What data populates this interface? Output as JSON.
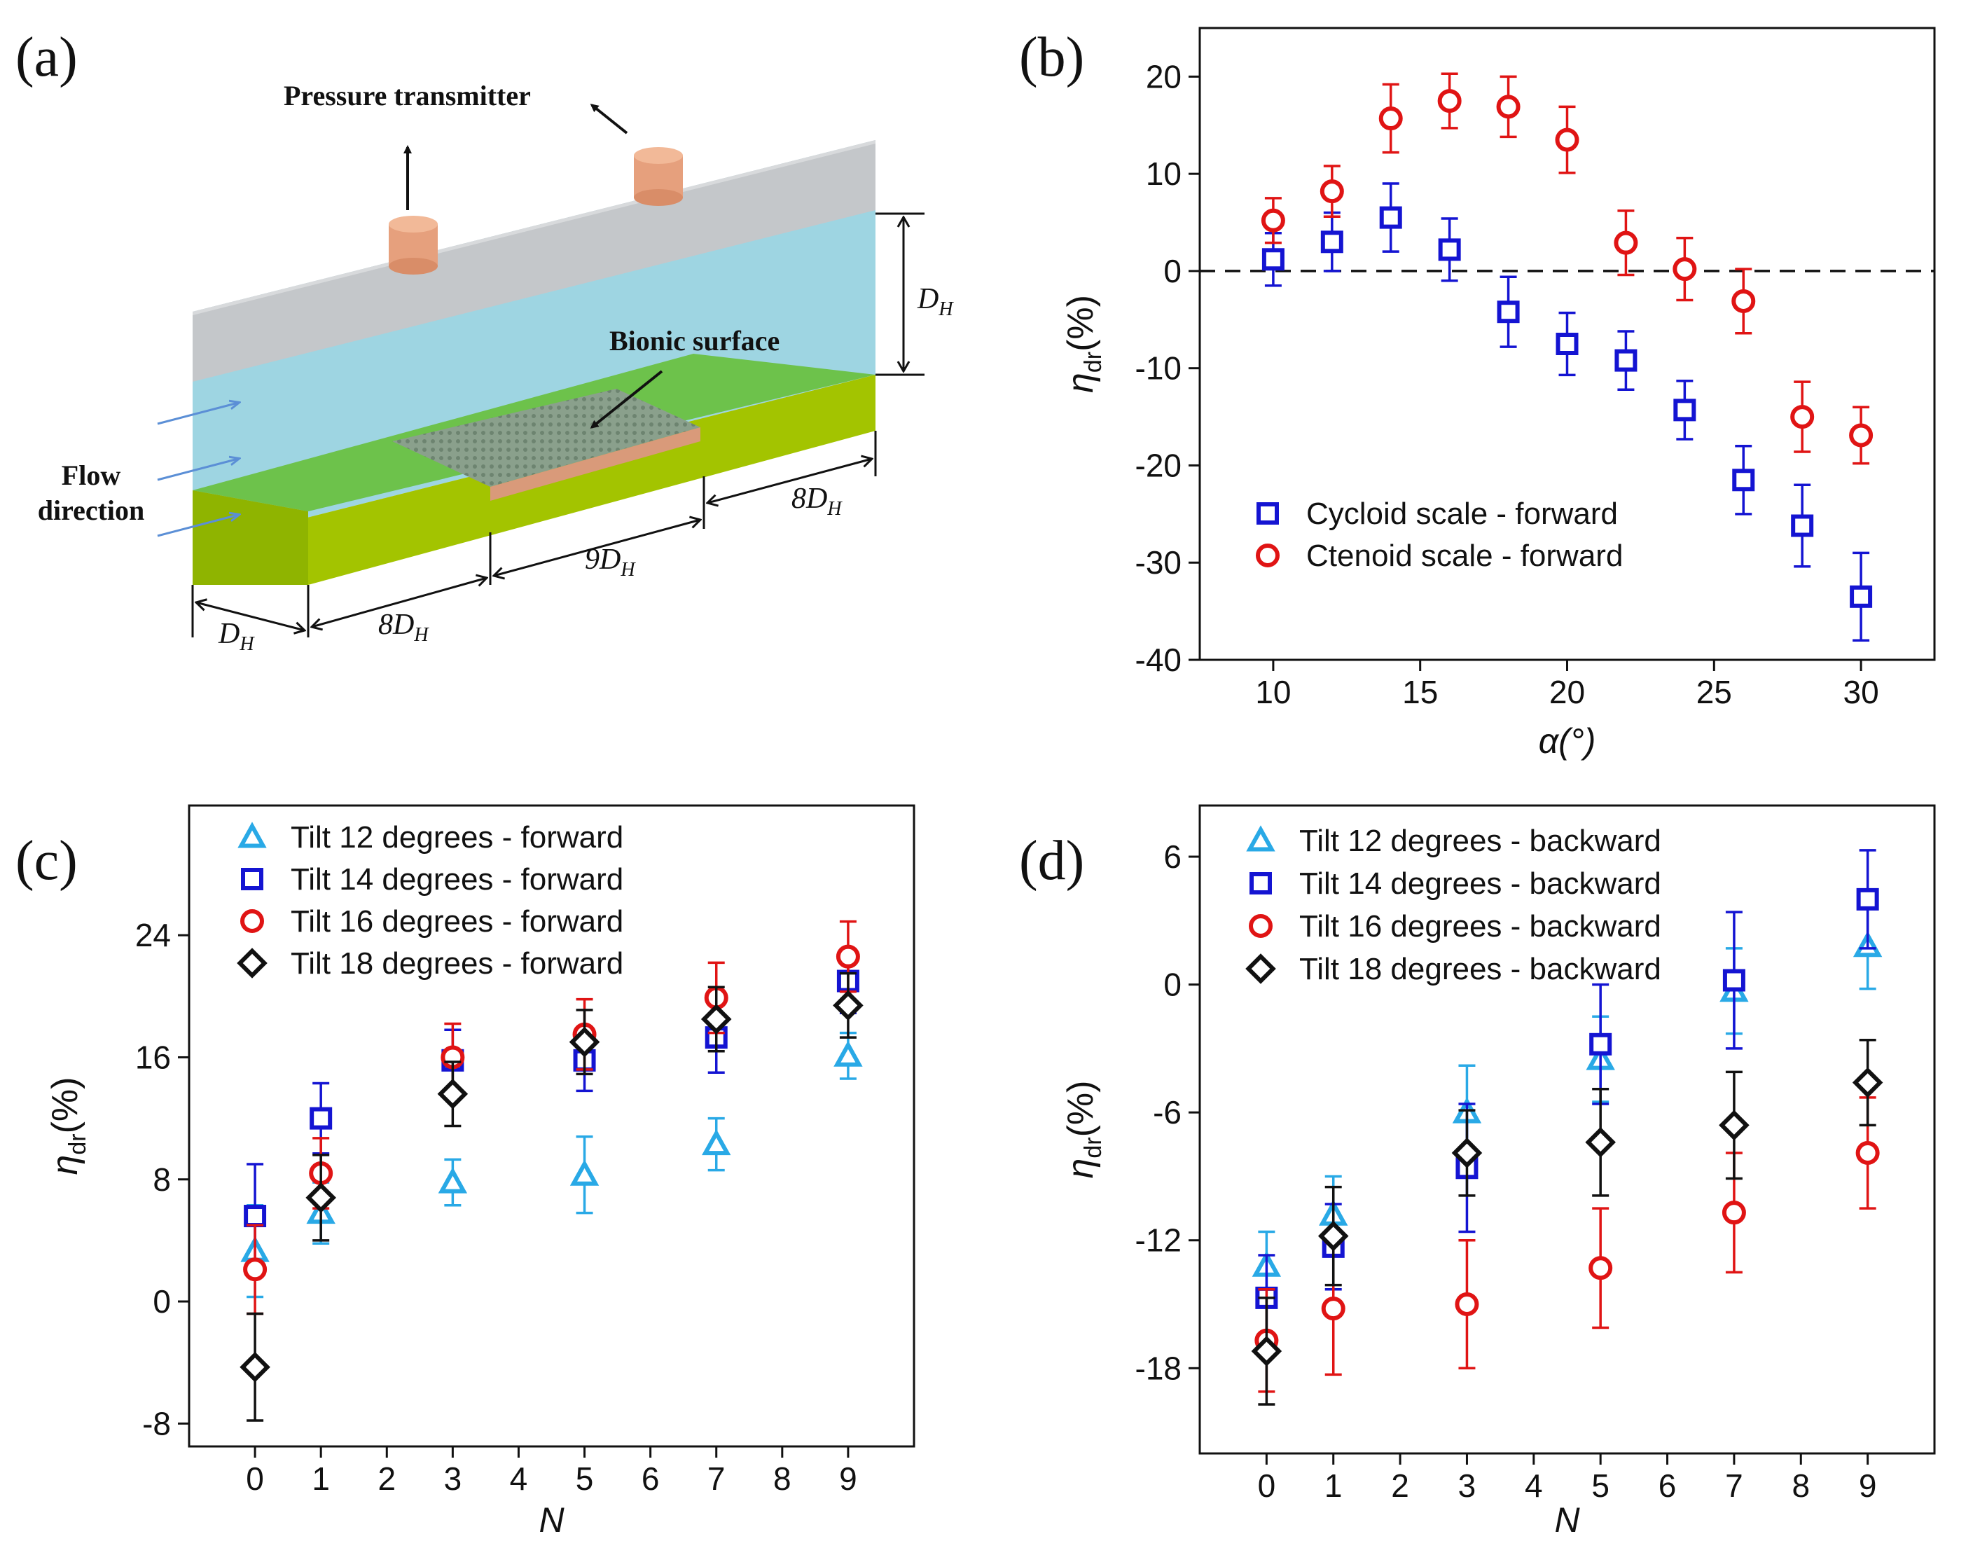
{
  "panel_a": {
    "label": "(a)",
    "pressure_transmitter": "Pressure transmitter",
    "bionic_surface": "Bionic surface",
    "flow_line1": "Flow",
    "flow_line2": "direction",
    "dim_height": "D",
    "dim_height_sub": "H",
    "dim_base": "D",
    "dim_base_sub": "H",
    "dim_seg1": "8D",
    "dim_seg1_sub": "H",
    "dim_seg2": "9D",
    "dim_seg2_sub": "H",
    "dim_seg3": "8D",
    "dim_seg3_sub": "H",
    "colors": {
      "top": "#c4c7ca",
      "water": "#9ed5e2",
      "base_top": "#6dc24b",
      "base_side": "#a3c400",
      "cylinder": "#e6a07d",
      "flow_arrow": "#5b8fd6"
    }
  },
  "chart_data": [
    {
      "panel": "(b)",
      "type": "scatter",
      "xlabel": "α(°)",
      "ylabel_main": "η",
      "ylabel_sub": "dr",
      "ylabel_unit": "(%)",
      "xlim": [
        7.5,
        32.5
      ],
      "ylim": [
        -40,
        25
      ],
      "xticks": [
        10,
        15,
        20,
        25,
        30
      ],
      "yticks": [
        20,
        10,
        0,
        -10,
        -20,
        -30,
        -40
      ],
      "zero_line": true,
      "legend_position": "bottom-left",
      "series": [
        {
          "name": "Cycloid scale - forward",
          "marker": "square",
          "color": "#1414d2",
          "x": [
            10,
            12,
            14,
            16,
            18,
            20,
            22,
            24,
            26,
            28,
            30
          ],
          "y": [
            1.2,
            3.0,
            5.5,
            2.2,
            -4.2,
            -7.5,
            -9.2,
            -14.3,
            -21.5,
            -26.2,
            -33.5
          ],
          "err": [
            2.7,
            3.0,
            3.5,
            3.2,
            3.6,
            3.2,
            3.0,
            3.0,
            3.5,
            4.2,
            4.5
          ]
        },
        {
          "name": "Ctenoid scale - forward",
          "marker": "circle",
          "color": "#e01414",
          "x": [
            10,
            12,
            14,
            16,
            18,
            20,
            22,
            24,
            26,
            28,
            30
          ],
          "y": [
            5.2,
            8.2,
            15.7,
            17.5,
            16.9,
            13.5,
            2.9,
            0.2,
            -3.1,
            -15.0,
            -16.9
          ],
          "err": [
            2.3,
            2.6,
            3.5,
            2.8,
            3.1,
            3.4,
            3.3,
            3.2,
            3.3,
            3.6,
            2.9
          ]
        }
      ]
    },
    {
      "panel": "(c)",
      "type": "scatter",
      "xlabel": "N",
      "ylabel_main": "η",
      "ylabel_sub": "dr",
      "ylabel_unit": "(%)",
      "xlim": [
        -1,
        10
      ],
      "ylim": [
        -9.5,
        32.5
      ],
      "xticks": [
        0,
        1,
        2,
        3,
        4,
        5,
        6,
        7,
        8,
        9
      ],
      "yticks": [
        24,
        16,
        8,
        0,
        -8
      ],
      "legend_position": "top-left",
      "series": [
        {
          "name": "Tilt 12 degrees - forward",
          "marker": "triangle",
          "color": "#29a9e6",
          "x": [
            0,
            1,
            3,
            5,
            7,
            9
          ],
          "y": [
            3.3,
            5.8,
            7.8,
            8.3,
            10.3,
            16.1
          ],
          "err": [
            3.0,
            2.0,
            1.5,
            2.5,
            1.7,
            1.5
          ]
        },
        {
          "name": "Tilt 14 degrees - forward",
          "marker": "square",
          "color": "#1414d2",
          "x": [
            0,
            1,
            3,
            5,
            7,
            9
          ],
          "y": [
            5.6,
            12.0,
            15.8,
            15.8,
            17.3,
            21.0
          ],
          "err": [
            3.4,
            2.3,
            2.0,
            2.0,
            2.3,
            2.1
          ]
        },
        {
          "name": "Tilt 16 degrees - forward",
          "marker": "circle",
          "color": "#e01414",
          "x": [
            0,
            1,
            3,
            5,
            7,
            9
          ],
          "y": [
            2.1,
            8.4,
            16.0,
            17.5,
            19.9,
            22.6
          ],
          "err": [
            2.9,
            2.3,
            2.2,
            2.3,
            2.3,
            2.3
          ]
        },
        {
          "name": "Tilt 18 degrees - forward",
          "marker": "diamond",
          "color": "#111111",
          "x": [
            0,
            1,
            3,
            5,
            7,
            9
          ],
          "y": [
            -4.3,
            6.8,
            13.6,
            17.0,
            18.5,
            19.4
          ],
          "err": [
            3.5,
            2.8,
            2.1,
            2.1,
            2.1,
            2.1
          ]
        }
      ]
    },
    {
      "panel": "(d)",
      "type": "scatter",
      "xlabel": "N",
      "ylabel_main": "η",
      "ylabel_sub": "dr",
      "ylabel_unit": "(%)",
      "xlim": [
        -1,
        10
      ],
      "ylim": [
        -22,
        8.4
      ],
      "xticks": [
        0,
        1,
        2,
        3,
        4,
        5,
        6,
        7,
        8,
        9
      ],
      "yticks": [
        6,
        0,
        -6,
        -12,
        -18
      ],
      "legend_position": "top-left",
      "series": [
        {
          "name": "Tilt 12 degrees - backward",
          "marker": "triangle",
          "color": "#29a9e6",
          "x": [
            0,
            1,
            3,
            5,
            7,
            9
          ],
          "y": [
            -13.2,
            -10.8,
            -6.0,
            -3.5,
            -0.3,
            1.8
          ],
          "err": [
            1.6,
            1.8,
            2.2,
            2.0,
            2.0,
            2.0
          ]
        },
        {
          "name": "Tilt 14 degrees - backward",
          "marker": "square",
          "color": "#1414d2",
          "x": [
            0,
            1,
            3,
            5,
            7,
            9
          ],
          "y": [
            -14.7,
            -12.3,
            -8.6,
            -2.8,
            0.2,
            4.0
          ],
          "err": [
            2.0,
            2.0,
            3.0,
            2.8,
            3.2,
            2.3
          ]
        },
        {
          "name": "Tilt 16 degrees - backward",
          "marker": "circle",
          "color": "#e01414",
          "x": [
            0,
            1,
            3,
            5,
            7,
            9
          ],
          "y": [
            -16.7,
            -15.2,
            -15.0,
            -13.3,
            -10.7,
            -7.9
          ],
          "err": [
            2.4,
            3.1,
            3.0,
            2.8,
            2.8,
            2.6
          ]
        },
        {
          "name": "Tilt 18 degrees - backward",
          "marker": "diamond",
          "color": "#111111",
          "x": [
            0,
            1,
            3,
            5,
            7,
            9
          ],
          "y": [
            -17.2,
            -11.8,
            -7.9,
            -7.4,
            -6.6,
            -4.6
          ],
          "err": [
            2.5,
            2.3,
            2.0,
            2.5,
            2.5,
            2.0
          ]
        }
      ]
    }
  ]
}
